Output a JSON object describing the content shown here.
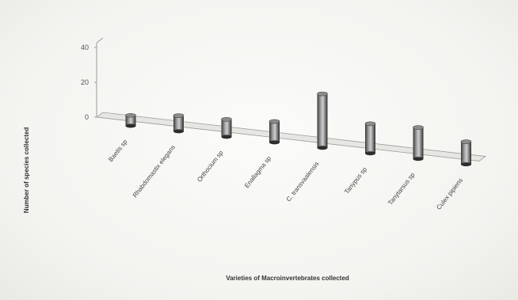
{
  "chart_data": {
    "type": "bar",
    "categories": [
      "Baetis sp",
      "Rhabdomastix elegans",
      "Orthocium sp",
      "Enallagma sp",
      "C. transvaalensis",
      "Tanypus sp",
      "Tanytarsus sp",
      "Culex pipiens"
    ],
    "values": [
      6,
      9,
      10,
      12,
      31,
      17,
      18,
      13
    ],
    "title": "",
    "xlabel": "Varieties of Macroinvertebrates collected",
    "ylabel": "Number of species collected",
    "yticks": [
      "0",
      "20",
      "40"
    ],
    "ylim": [
      0,
      40
    ],
    "grid": false,
    "colors": {
      "bar": "#7a7a7a",
      "axis": "#9a9a9a"
    }
  }
}
